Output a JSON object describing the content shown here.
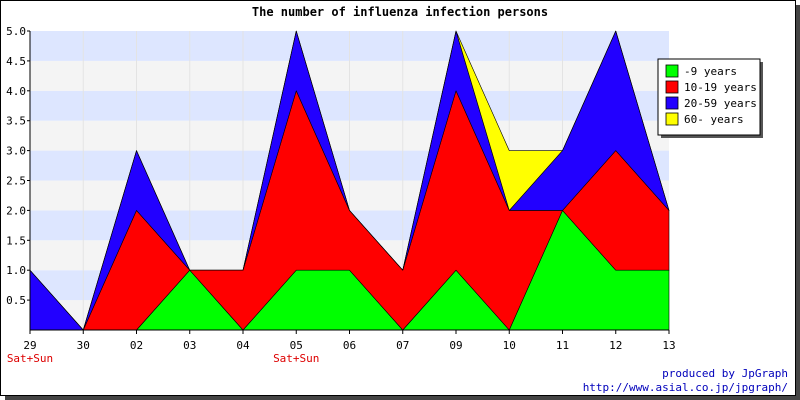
{
  "chart_data": {
    "type": "area",
    "title": "The number of influenza infection persons",
    "xlabel": "",
    "ylabel": "",
    "categories": [
      "29",
      "30",
      "02",
      "03",
      "04",
      "05",
      "06",
      "07",
      "09",
      "10",
      "11",
      "12",
      "13"
    ],
    "weekend_labels": [
      "Sat+Sun",
      "",
      "",
      "",
      "",
      "Sat+Sun",
      "",
      "",
      "",
      "",
      "",
      "",
      ""
    ],
    "ylim": [
      0,
      5
    ],
    "yticks": [
      "5.0",
      "4.5",
      "4.0",
      "3.5",
      "3.0",
      "2.5",
      "2.0",
      "1.5",
      "1.0",
      "0.5"
    ],
    "stacked": true,
    "series": [
      {
        "name": "-9 years",
        "color": "#00ff00",
        "values": [
          0,
          0,
          0,
          1,
          0,
          1,
          1,
          0,
          1,
          0,
          2,
          1,
          1
        ]
      },
      {
        "name": "10-19 years",
        "color": "#ff0000",
        "values": [
          0,
          0,
          2,
          0,
          1,
          3,
          1,
          1,
          3,
          2,
          0,
          2,
          1
        ]
      },
      {
        "name": "20-59 years",
        "color": "#2200ff",
        "values": [
          1,
          0,
          1,
          0,
          0,
          1,
          0,
          0,
          1,
          0,
          1,
          2,
          0
        ]
      },
      {
        "name": "60- years",
        "color": "#ffff00",
        "values": [
          0,
          0,
          0,
          0,
          0,
          0,
          0,
          0,
          0,
          1,
          0,
          0,
          0
        ]
      }
    ],
    "legend_position": "top-right",
    "band_colors": [
      "#dde6ff",
      "#f4f4f4"
    ],
    "grid": true
  },
  "footer": {
    "credit": "produced by JpGraph",
    "url": "http://www.asial.co.jp/jpgraph/"
  }
}
